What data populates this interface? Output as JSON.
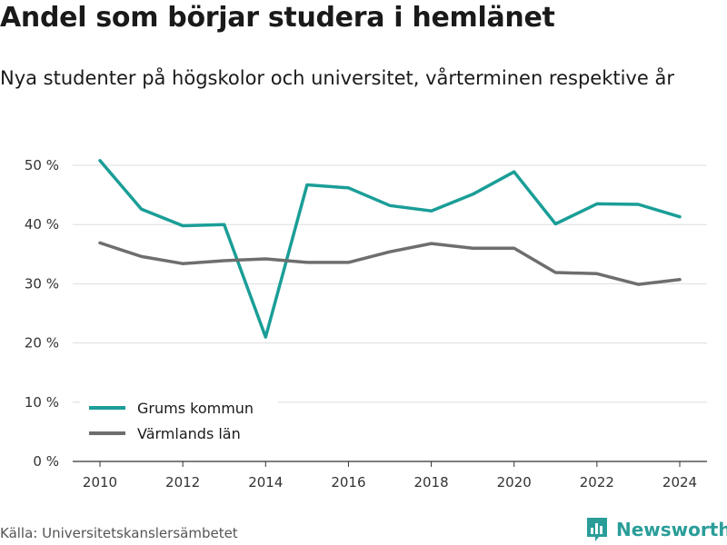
{
  "title": "Andel som börjar studera i hemlänet",
  "subtitle": "Nya studenter på högskolor och universitet, vårterminen respektive år",
  "source": "Källa: Universitetskanslersämbetet",
  "brand": {
    "name": "Newsworthy",
    "icon": "bar-chart-logo-icon",
    "color": "#2a9d99"
  },
  "chart_data": {
    "type": "line",
    "x": [
      2010,
      2011,
      2012,
      2013,
      2014,
      2015,
      2016,
      2017,
      2018,
      2019,
      2020,
      2021,
      2022,
      2023,
      2024
    ],
    "x_ticks": [
      "2010",
      "2012",
      "2014",
      "2016",
      "2018",
      "2020",
      "2022",
      "2024"
    ],
    "y_ticks": [
      "0 %",
      "10 %",
      "20 %",
      "30 %",
      "40 %",
      "50 %"
    ],
    "ylim": [
      0,
      50
    ],
    "grid": true,
    "legend": "bottom-left",
    "series": [
      {
        "name": "Grums kommun",
        "color": "#1a9e97",
        "values": [
          50.8,
          42.6,
          39.8,
          40.0,
          21.0,
          46.7,
          46.2,
          43.2,
          42.3,
          45.1,
          48.9,
          40.1,
          43.5,
          43.4,
          41.3
        ]
      },
      {
        "name": "Värmlands län",
        "color": "#6e6e6e",
        "values": [
          36.9,
          34.6,
          33.4,
          33.9,
          34.2,
          33.6,
          33.6,
          35.4,
          36.8,
          36.0,
          36.0,
          31.9,
          31.7,
          29.9,
          30.7
        ]
      }
    ]
  }
}
